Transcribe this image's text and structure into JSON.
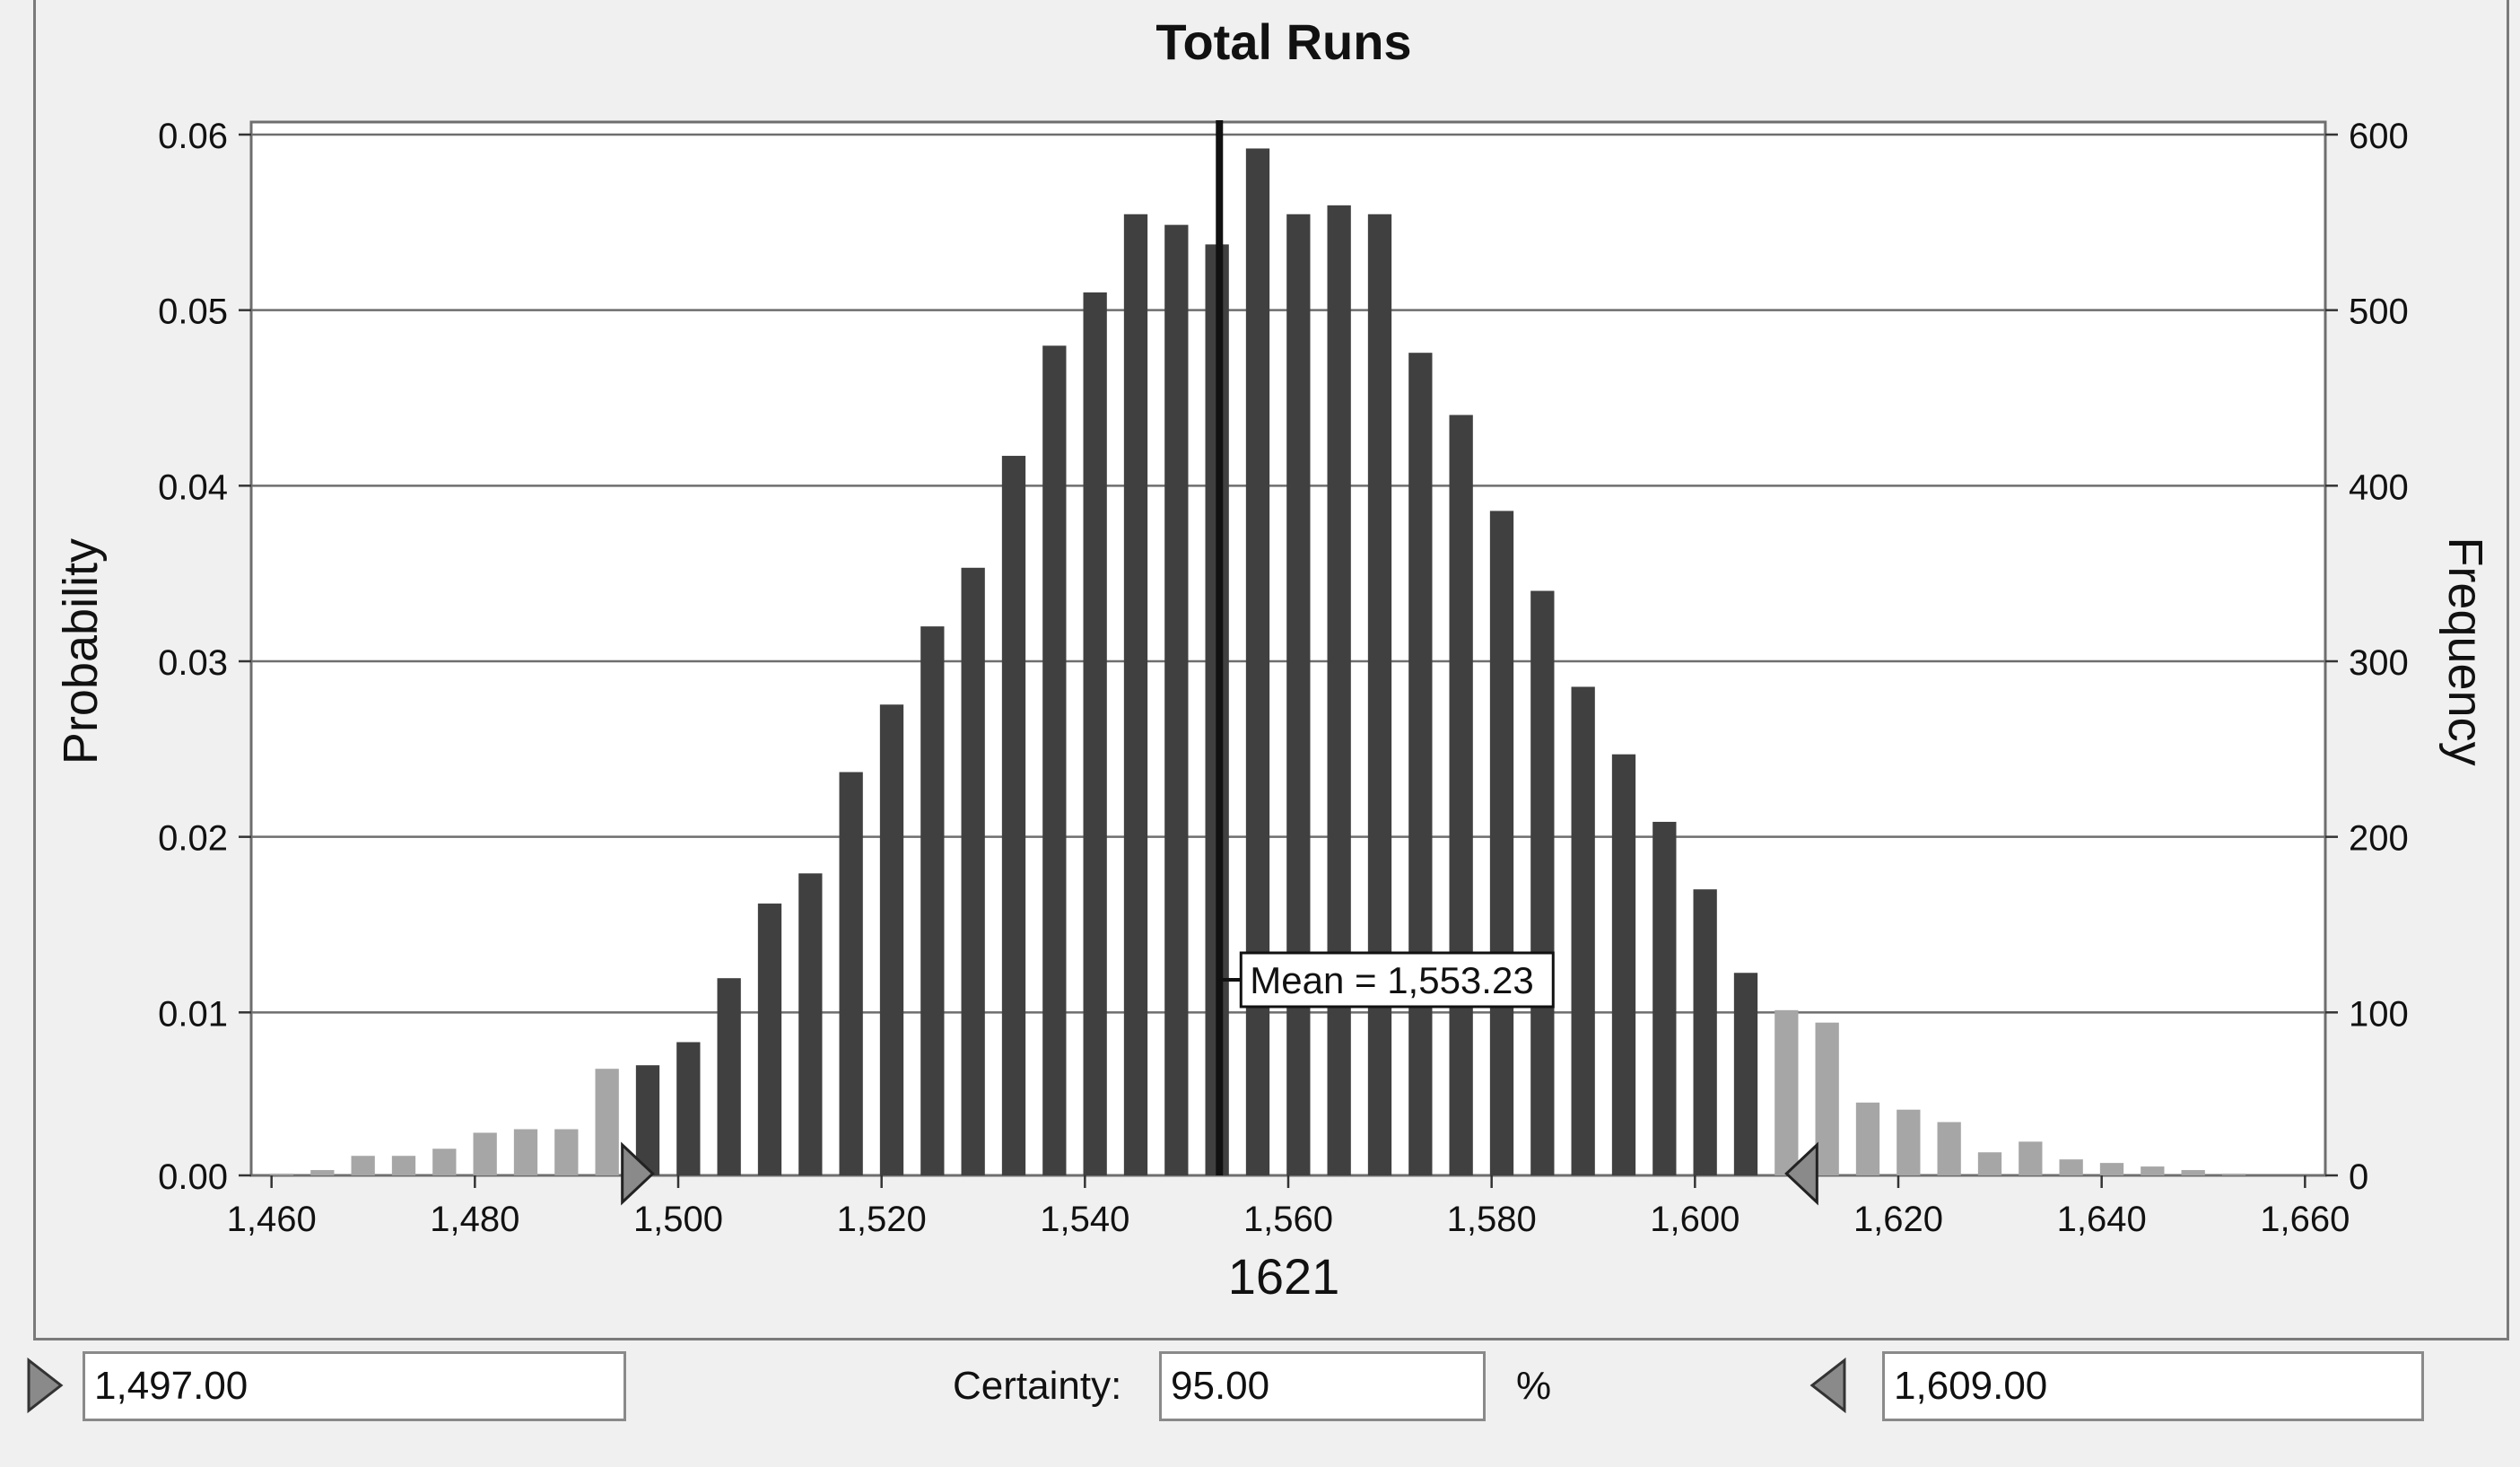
{
  "chart_data": {
    "type": "bar",
    "title": "Total Runs",
    "xlabel": "1621",
    "ylabel": "Probability",
    "ylabel_right": "Frequency",
    "xlim": [
      1458,
      1662
    ],
    "ylim": [
      0,
      0.06
    ],
    "ylim_right": [
      0,
      600
    ],
    "x_ticks": [
      "1,460",
      "1,480",
      "1,500",
      "1,520",
      "1,540",
      "1,560",
      "1,580",
      "1,600",
      "1,620",
      "1,640",
      "1,660"
    ],
    "x_tick_values": [
      1460,
      1480,
      1500,
      1520,
      1540,
      1560,
      1580,
      1600,
      1620,
      1640,
      1660
    ],
    "y_ticks": [
      "0.00",
      "0.01",
      "0.02",
      "0.03",
      "0.04",
      "0.05",
      "0.06"
    ],
    "y_tick_values": [
      0,
      0.01,
      0.02,
      0.03,
      0.04,
      0.05,
      0.06
    ],
    "y_ticks_right": [
      "0",
      "100",
      "200",
      "300",
      "400",
      "500",
      "600"
    ],
    "bin_centers": [
      1461,
      1465,
      1469,
      1473,
      1477,
      1481,
      1485,
      1489,
      1493,
      1497,
      1501,
      1505,
      1509,
      1513,
      1517,
      1521,
      1525,
      1529,
      1533,
      1537,
      1541,
      1545,
      1549,
      1553,
      1557,
      1561,
      1565,
      1569,
      1573,
      1577,
      1581,
      1585,
      1589,
      1593,
      1597,
      1601,
      1605,
      1609,
      1613,
      1617,
      1621,
      1625,
      1629,
      1633,
      1637,
      1641,
      1645,
      1649,
      1653,
      1657
    ],
    "values": [
      0.0001,
      0.0003,
      0.0011,
      0.0011,
      0.0015,
      0.0024,
      0.0026,
      0.0026,
      0.006,
      0.0062,
      0.0075,
      0.0111,
      0.0153,
      0.017,
      0.0227,
      0.0265,
      0.0309,
      0.0342,
      0.0405,
      0.0467,
      0.0497,
      0.0541,
      0.0535,
      0.0524,
      0.0578,
      0.0541,
      0.0546,
      0.0541,
      0.0463,
      0.0428,
      0.0374,
      0.0329,
      0.0275,
      0.0237,
      0.0199,
      0.0161,
      0.0114,
      0.0093,
      0.0086,
      0.0041,
      0.0037,
      0.003,
      0.0013,
      0.0019,
      0.0009,
      0.0007,
      0.0005,
      0.0003,
      0.0001,
      0
    ],
    "bar_color_inside": "#404040",
    "bar_color_outside": "#a6a6a6",
    "lower_bound": 1497,
    "upper_bound": 1609,
    "mean": 1553.23,
    "mean_label": "Mean = 1,553.23",
    "grid": true
  },
  "controls": {
    "lower_value": "1,497.00",
    "certainty_label": "Certainty:",
    "certainty_value": "95.00",
    "percent_label": "%",
    "upper_value": "1,609.00"
  }
}
